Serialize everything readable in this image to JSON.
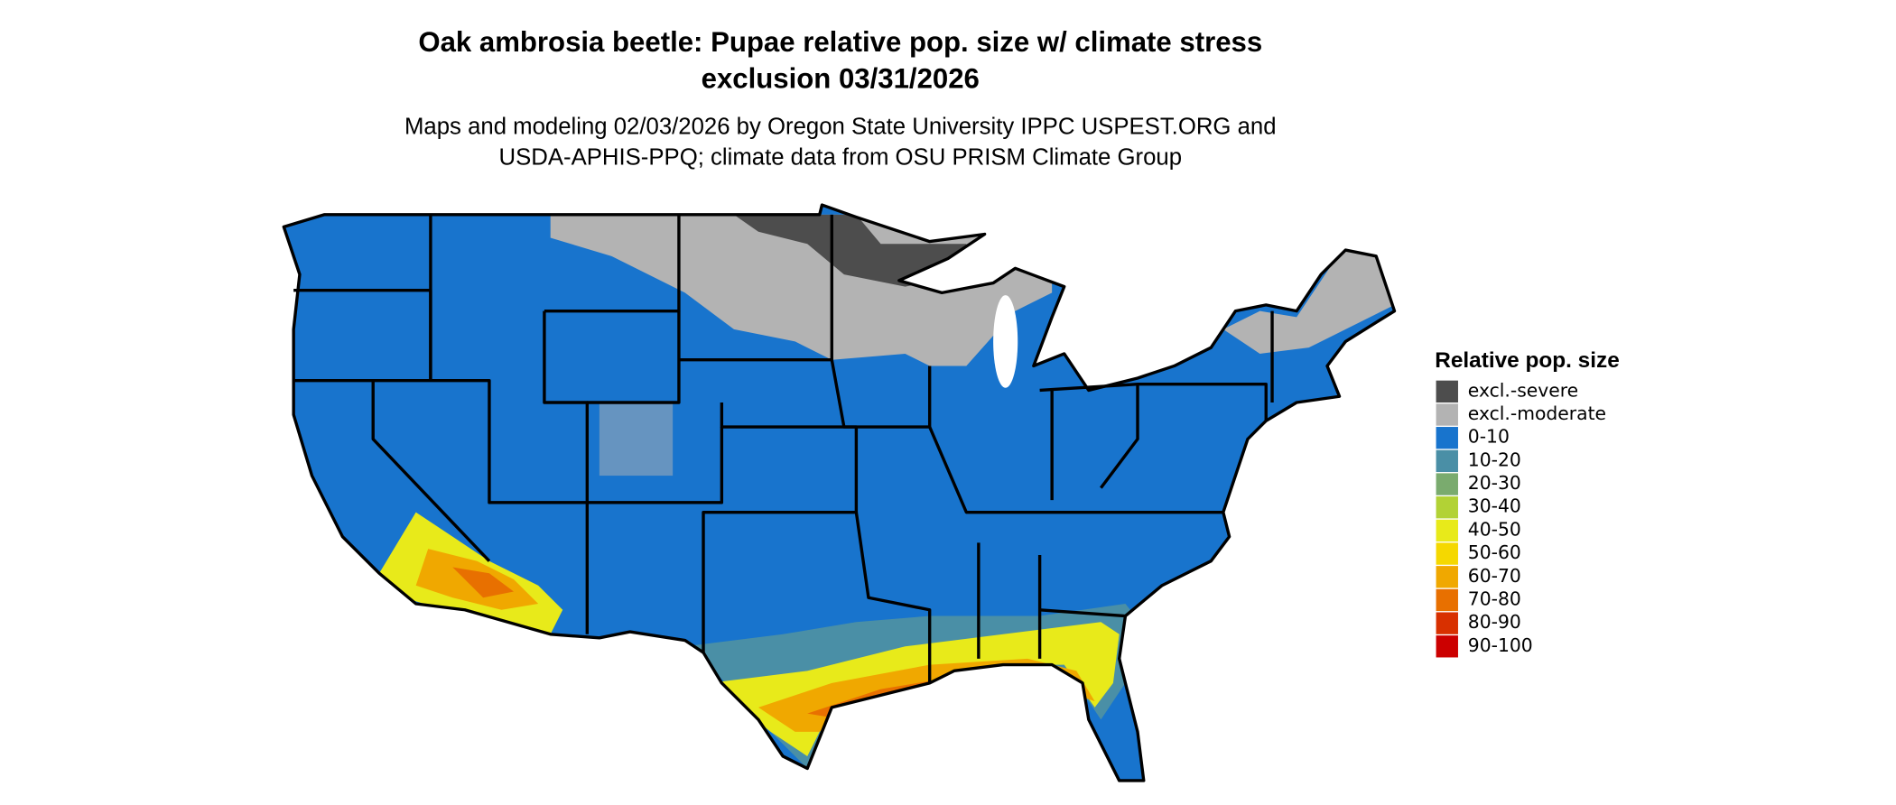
{
  "header": {
    "title": [
      "Oak ambrosia beetle: Pupae relative pop. size w/ climate stress",
      "exclusion 03/31/2026"
    ],
    "subtitle": [
      "Maps and modeling 02/03/2026 by Oregon State University IPPC USPEST.ORG and",
      "USDA-APHIS-PPQ; climate data from OSU PRISM Climate Group"
    ]
  },
  "legend": {
    "title": "Relative pop. size",
    "items": [
      {
        "label": "excl.-severe",
        "color": "#4d4d4d"
      },
      {
        "label": "excl.-moderate",
        "color": "#b3b3b3"
      },
      {
        "label": "0-10",
        "color": "#1874cd"
      },
      {
        "label": "10-20",
        "color": "#4a8fa6"
      },
      {
        "label": "20-30",
        "color": "#7aab6e"
      },
      {
        "label": "30-40",
        "color": "#b2d235"
      },
      {
        "label": "40-50",
        "color": "#e8ea1a"
      },
      {
        "label": "50-60",
        "color": "#f5d800"
      },
      {
        "label": "60-70",
        "color": "#f0a800"
      },
      {
        "label": "70-80",
        "color": "#e87000"
      },
      {
        "label": "80-90",
        "color": "#d83000"
      },
      {
        "label": "90-100",
        "color": "#cc0000"
      }
    ]
  }
}
